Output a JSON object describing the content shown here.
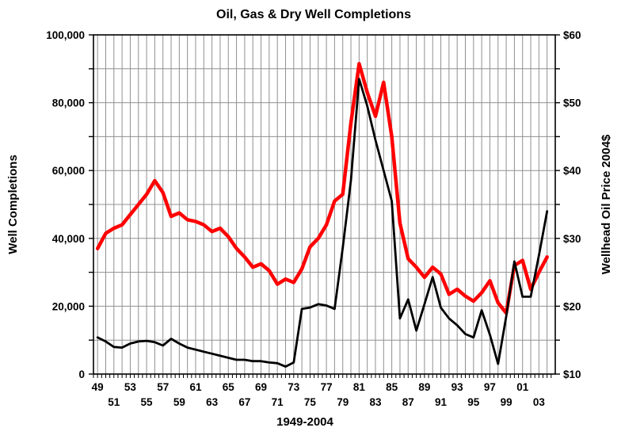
{
  "page": {
    "background": "#ffffff"
  },
  "chart_data": {
    "type": "line",
    "title": "Oil, Gas & Dry Well Completions",
    "x_axis": {
      "title": "1949-2004",
      "start_year": 1949,
      "end_year": 2004,
      "label_row1": [
        "49",
        "53",
        "57",
        "61",
        "65",
        "69",
        "73",
        "77",
        "81",
        "85",
        "89",
        "93",
        "97",
        "01"
      ],
      "label_row1_years": [
        1949,
        1953,
        1957,
        1961,
        1965,
        1969,
        1973,
        1977,
        1981,
        1985,
        1989,
        1993,
        1997,
        2001
      ],
      "label_row2": [
        "51",
        "55",
        "59",
        "63",
        "67",
        "71",
        "75",
        "79",
        "83",
        "87",
        "91",
        "95",
        "99",
        "03"
      ],
      "label_row2_years": [
        1951,
        1955,
        1959,
        1963,
        1967,
        1971,
        1975,
        1979,
        1983,
        1987,
        1991,
        1995,
        1999,
        2003
      ]
    },
    "y_left": {
      "title": "Well Completions",
      "min": 0,
      "max": 100000,
      "major_step": 20000,
      "minor_step": 10000,
      "tick_labels": [
        "0",
        "20,000",
        "40,000",
        "60,000",
        "80,000",
        "100,000"
      ]
    },
    "y_right": {
      "title": "Wellhead Oil Price 2004$",
      "min": 10,
      "max": 60,
      "major_step": 10,
      "minor_step": 5,
      "tick_labels": [
        "$10",
        "$20",
        "$30",
        "$40",
        "$50",
        "$60"
      ]
    },
    "grid": {
      "on": true,
      "color": "#909090",
      "border_color": "#000000"
    },
    "legend": {
      "visible": false
    },
    "series": [
      {
        "name": "Well Completions (oil, gas & dry wells)",
        "axis": "left",
        "color": "#ff0000",
        "stroke_width": 4.5,
        "values": [
          37000,
          41500,
          43000,
          44000,
          47000,
          50000,
          53000,
          57000,
          53500,
          46500,
          47500,
          45500,
          45000,
          44000,
          42000,
          43000,
          40500,
          37000,
          34500,
          31500,
          32500,
          30500,
          26500,
          28000,
          27000,
          31000,
          37500,
          40000,
          44000,
          51000,
          53000,
          74000,
          91500,
          83000,
          76000,
          86000,
          70000,
          44500,
          34000,
          31500,
          28500,
          31500,
          29500,
          23500,
          25000,
          23000,
          21500,
          24000,
          27500,
          21000,
          18000,
          32000,
          33500,
          25000,
          30000,
          34500
        ]
      },
      {
        "name": "Wellhead Oil Price 2004$",
        "axis": "right",
        "color": "#000000",
        "stroke_width": 2.8,
        "values": [
          15.4,
          14.8,
          14.0,
          13.9,
          14.5,
          14.8,
          14.9,
          14.7,
          14.2,
          15.2,
          14.5,
          13.9,
          13.6,
          13.3,
          13.0,
          12.7,
          12.4,
          12.1,
          12.1,
          11.9,
          11.9,
          11.7,
          11.6,
          11.1,
          11.7,
          19.6,
          19.8,
          20.3,
          20.1,
          19.6,
          28.6,
          38.5,
          53.5,
          49.5,
          44.5,
          40.0,
          35.5,
          18.2,
          21.0,
          16.4,
          20.3,
          24.3,
          19.8,
          18.2,
          17.2,
          15.9,
          15.4,
          19.4,
          15.8,
          11.5,
          18.5,
          26.6,
          21.4,
          21.4,
          27.5,
          34.0
        ]
      }
    ]
  }
}
